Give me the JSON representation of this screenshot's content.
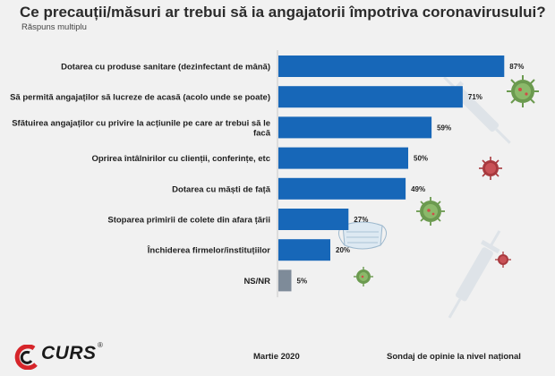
{
  "title": "Ce precauții/măsuri ar trebui să ia angajatorii împotriva coronavirusului?",
  "subtitle": "Răspuns multiplu",
  "footer": {
    "brand": "CURS",
    "registered": "®",
    "date": "Martie 2020",
    "note": "Sondaj de opinie la nivel național"
  },
  "colors": {
    "bar": "#1767b8",
    "bar_nsnr": "#7e8b99",
    "label_text": "#1e1e1e",
    "logo_red": "#d6252a"
  },
  "chart_data": {
    "type": "bar",
    "orientation": "horizontal",
    "unit": "%",
    "categories": [
      [
        "Dotarea cu produse sanitare (dezinfectant de mână)"
      ],
      [
        "Să permită angajaților să lucreze de acasă (acolo unde se poate)"
      ],
      [
        "Sfătuirea angajaților cu privire la acțiunile pe care ar trebui să le",
        "facă"
      ],
      [
        "Oprirea întâlnirilor cu clienții, conferințe, etc"
      ],
      [
        "Dotarea cu măști de față"
      ],
      [
        "Stoparea primirii de colete din afara țării"
      ],
      [
        "Închiderea firmelor/instituțiilor"
      ],
      [
        "NS/NR"
      ]
    ],
    "values": [
      87,
      71,
      59,
      50,
      49,
      27,
      20,
      5
    ],
    "value_labels": [
      "87%",
      "71%",
      "59%",
      "50%",
      "49%",
      "27%",
      "20%",
      "5%"
    ],
    "xlim": [
      0,
      100
    ],
    "grid": false,
    "legend": "none"
  },
  "decorations": [
    "virus-icon-green",
    "virus-icon-red",
    "syringe-icon",
    "face-mask-icon"
  ]
}
